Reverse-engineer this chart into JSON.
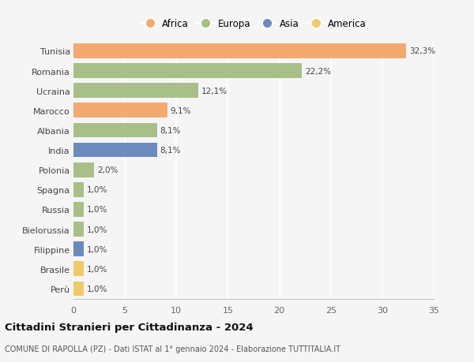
{
  "categories": [
    "Tunisia",
    "Romania",
    "Ucraina",
    "Marocco",
    "Albania",
    "India",
    "Polonia",
    "Spagna",
    "Russia",
    "Bielorussia",
    "Filippine",
    "Brasile",
    "Perù"
  ],
  "values": [
    32.3,
    22.2,
    12.1,
    9.1,
    8.1,
    8.1,
    2.0,
    1.0,
    1.0,
    1.0,
    1.0,
    1.0,
    1.0
  ],
  "labels": [
    "32,3%",
    "22,2%",
    "12,1%",
    "9,1%",
    "8,1%",
    "8,1%",
    "2,0%",
    "1,0%",
    "1,0%",
    "1,0%",
    "1,0%",
    "1,0%",
    "1,0%"
  ],
  "colors": [
    "#F4A970",
    "#A8BF8A",
    "#A8BF8A",
    "#F4A970",
    "#A8BF8A",
    "#6B8BBF",
    "#A8BF8A",
    "#A8BF8A",
    "#A8BF8A",
    "#A8BF8A",
    "#6B8BBF",
    "#F0C96B",
    "#F0C96B"
  ],
  "legend_labels": [
    "Africa",
    "Europa",
    "Asia",
    "America"
  ],
  "legend_colors": [
    "#F4A970",
    "#A8BF8A",
    "#6B8BBF",
    "#F0C96B"
  ],
  "title": "Cittadini Stranieri per Cittadinanza - 2024",
  "subtitle": "COMUNE DI RAPOLLA (PZ) - Dati ISTAT al 1° gennaio 2024 - Elaborazione TUTTITALIA.IT",
  "xlim": [
    0,
    35
  ],
  "xticks": [
    0,
    5,
    10,
    15,
    20,
    25,
    30,
    35
  ],
  "background_color": "#f5f5f5",
  "grid_color": "#ffffff",
  "bar_height": 0.75
}
